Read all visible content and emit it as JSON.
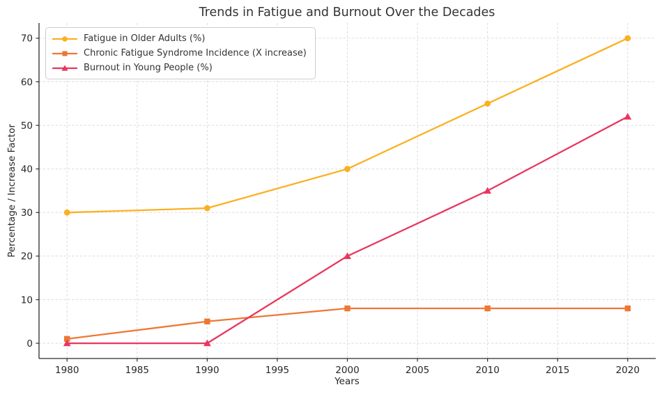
{
  "chart_data": {
    "type": "line",
    "title": "Trends in Fatigue and Burnout Over the Decades",
    "xlabel": "Years",
    "ylabel": "Percentage / Increase Factor",
    "x": [
      1980,
      1990,
      2000,
      2010,
      2020
    ],
    "series": [
      {
        "name": "Fatigue in Older Adults (%)",
        "values": [
          30,
          31,
          40,
          55,
          70
        ],
        "color": "#FBB020",
        "marker": "circle"
      },
      {
        "name": "Chronic Fatigue Syndrome Incidence (X increase)",
        "values": [
          1,
          5,
          8,
          8,
          8
        ],
        "color": "#EE7733",
        "marker": "square"
      },
      {
        "name": "Burnout in Young People (%)",
        "values": [
          0,
          0,
          20,
          35,
          52
        ],
        "color": "#E8365F",
        "marker": "triangle"
      }
    ],
    "xlim": [
      1978,
      2022
    ],
    "ylim": [
      -3.5,
      73.5
    ],
    "xticks": [
      1980,
      1985,
      1990,
      1995,
      2000,
      2005,
      2010,
      2015,
      2020
    ],
    "yticks": [
      0,
      10,
      20,
      30,
      40,
      50,
      60,
      70
    ],
    "grid": true,
    "grid_color": "#DBDBDB",
    "spine_color": "#2B2B2B",
    "legend_position": "upper-left"
  }
}
